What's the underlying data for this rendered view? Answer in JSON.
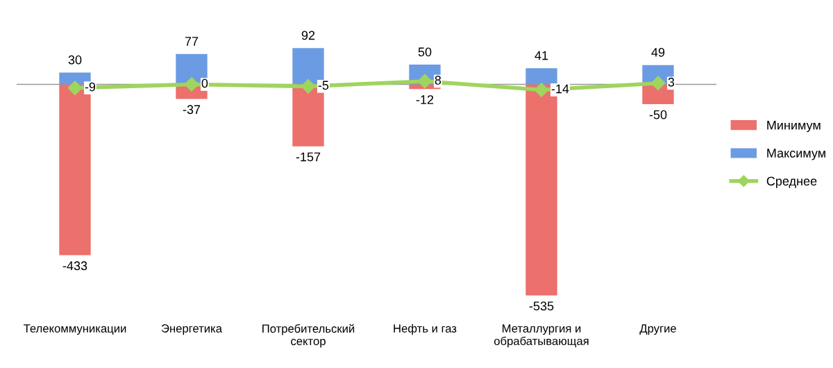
{
  "chart_data": {
    "type": "bar",
    "categories": [
      "Телекоммуникации",
      "Энергетика",
      "Потребительский\nсектор",
      "Нефть и газ",
      "Металлургия и\nобрабатывающая",
      "Другие"
    ],
    "series": [
      {
        "name": "Минимум",
        "color": "#ec706b",
        "values": [
          -433,
          -37,
          -157,
          -12,
          -535,
          -50
        ]
      },
      {
        "name": "Максимум",
        "color": "#6b9ce3",
        "values": [
          30,
          77,
          92,
          50,
          41,
          49
        ]
      },
      {
        "name": "Среднее",
        "type": "line",
        "color": "#9fd45e",
        "marker": "diamond",
        "values": [
          -9,
          0,
          -5,
          8,
          -14,
          3
        ]
      }
    ],
    "data_labels": true,
    "legend": "right",
    "grid": false,
    "stacked": true
  }
}
